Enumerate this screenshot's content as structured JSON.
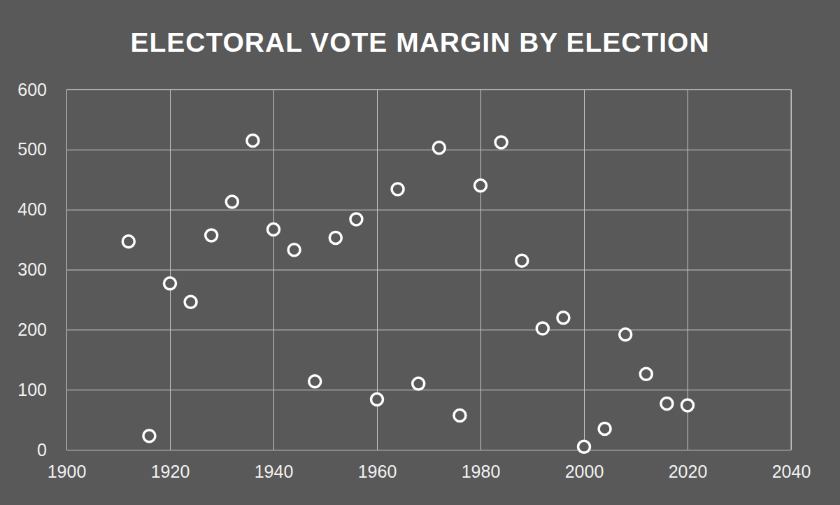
{
  "chart_data": {
    "type": "scatter",
    "title": "ELECTORAL VOTE MARGIN BY ELECTION",
    "x": [
      1912,
      1916,
      1920,
      1924,
      1928,
      1932,
      1936,
      1940,
      1944,
      1948,
      1952,
      1956,
      1960,
      1964,
      1968,
      1972,
      1976,
      1980,
      1984,
      1988,
      1992,
      1996,
      2000,
      2004,
      2008,
      2012,
      2016,
      2020
    ],
    "values": [
      347,
      23,
      277,
      246,
      357,
      413,
      515,
      367,
      333,
      114,
      353,
      384,
      84,
      434,
      110,
      503,
      57,
      440,
      512,
      315,
      202,
      220,
      5,
      35,
      192,
      126,
      77,
      74
    ],
    "color": "#ffffff",
    "marker": "circle",
    "xlim": [
      1900,
      2040
    ],
    "xticks": [
      1900,
      1920,
      1940,
      1960,
      1980,
      2000,
      2020,
      2040
    ],
    "ylim": [
      0,
      600
    ],
    "yticks": [
      0,
      100,
      200,
      300,
      400,
      500,
      600
    ],
    "grid": true
  }
}
